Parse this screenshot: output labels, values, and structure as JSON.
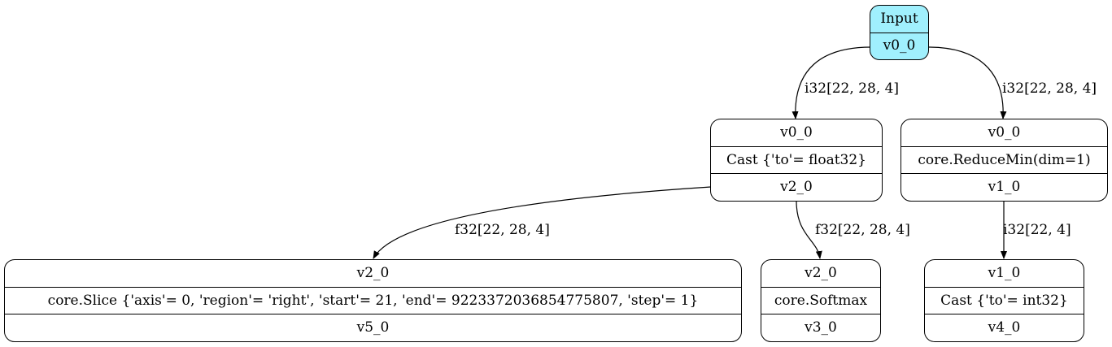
{
  "nodes": {
    "input": {
      "title": "Input",
      "output": "v0_0"
    },
    "cast_f32": {
      "input": "v0_0",
      "op": "Cast {'to'= float32}",
      "output": "v2_0"
    },
    "reducemin": {
      "input": "v0_0",
      "op": "core.ReduceMin(dim=1)",
      "output": "v1_0"
    },
    "slice": {
      "input": "v2_0",
      "op": "core.Slice {'axis'= 0, 'region'= 'right', 'start'= 21, 'end'= 9223372036854775807, 'step'= 1}",
      "output": "v5_0"
    },
    "softmax": {
      "input": "v2_0",
      "op": "core.Softmax",
      "output": "v3_0"
    },
    "cast_i32": {
      "input": "v1_0",
      "op": "Cast {'to'= int32}",
      "output": "v4_0"
    }
  },
  "edges": {
    "input_to_cast": "i32[22, 28, 4]",
    "input_to_reducemin": "i32[22, 28, 4]",
    "cast_to_slice": "f32[22, 28, 4]",
    "cast_to_softmax": "f32[22, 28, 4]",
    "reducemin_to_cast": "i32[22, 4]"
  }
}
